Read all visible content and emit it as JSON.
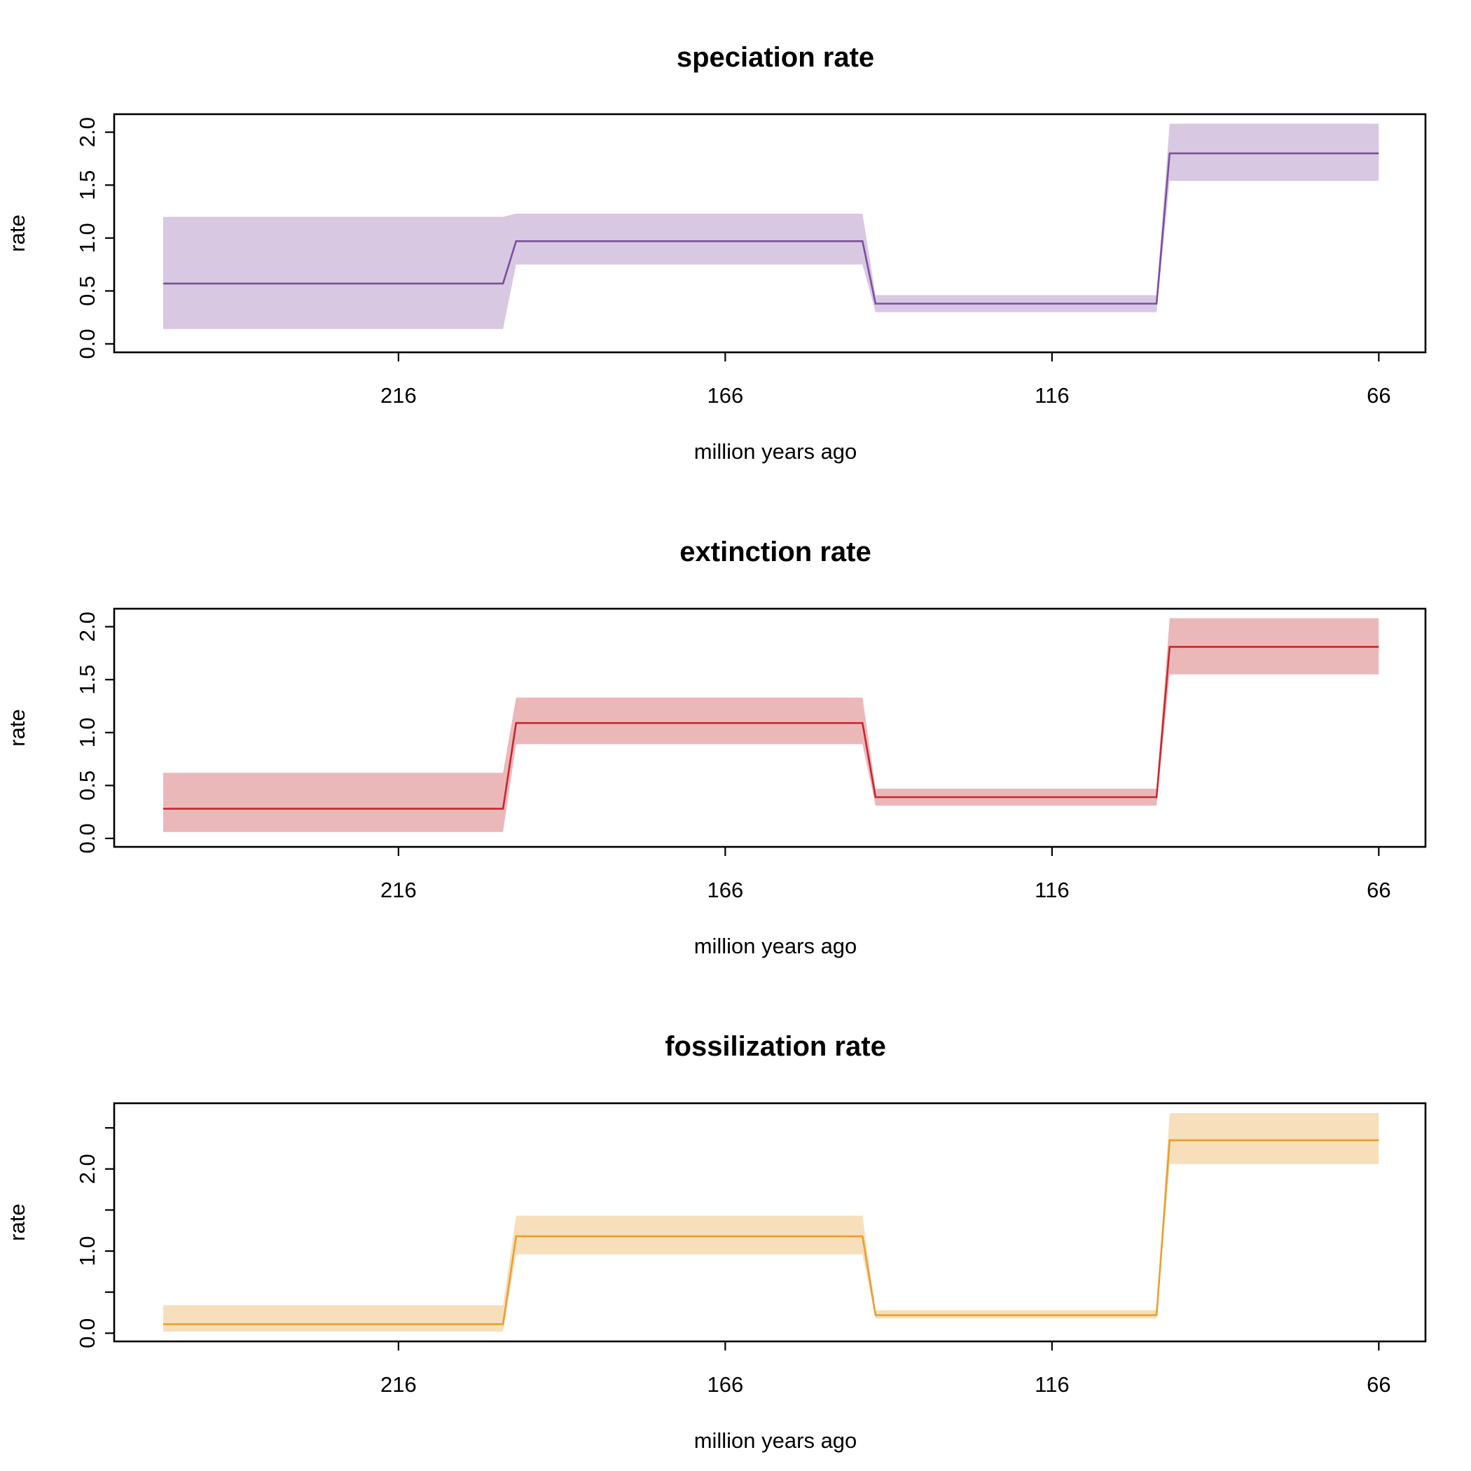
{
  "chart_data": [
    {
      "type": "line",
      "title": "speciation rate",
      "xlabel": "million years ago",
      "ylabel": "rate",
      "xlim": [
        252,
        66
      ],
      "ylim": [
        -0.08,
        2.17
      ],
      "x_ticks": [
        216,
        166,
        116,
        66
      ],
      "x_tick_labels": [
        "216",
        "166",
        "116",
        "66"
      ],
      "y_ticks": [
        0.0,
        0.5,
        1.0,
        1.5,
        2.0
      ],
      "y_tick_labels": [
        "0.0",
        "0.5",
        "1.0",
        "1.5",
        "2.0"
      ],
      "color": "#7b4f9e",
      "fill_color": "#d8c8e2",
      "series": [
        {
          "x": [
            252,
            200,
            198,
            145,
            143,
            100,
            98,
            66
          ],
          "y": [
            0.57,
            0.57,
            0.97,
            0.97,
            0.38,
            0.38,
            1.8,
            1.8
          ],
          "lower": [
            0.14,
            0.14,
            0.75,
            0.75,
            0.3,
            0.3,
            1.54,
            1.54
          ],
          "upper": [
            1.2,
            1.2,
            1.23,
            1.23,
            0.46,
            0.46,
            2.08,
            2.08
          ]
        }
      ]
    },
    {
      "type": "line",
      "title": "extinction rate",
      "xlabel": "million years ago",
      "ylabel": "rate",
      "xlim": [
        252,
        66
      ],
      "ylim": [
        -0.08,
        2.17
      ],
      "x_ticks": [
        216,
        166,
        116,
        66
      ],
      "x_tick_labels": [
        "216",
        "166",
        "116",
        "66"
      ],
      "y_ticks": [
        0.0,
        0.5,
        1.0,
        1.5,
        2.0
      ],
      "y_tick_labels": [
        "0.0",
        "0.5",
        "1.0",
        "1.5",
        "2.0"
      ],
      "color": "#c8262d",
      "fill_color": "#ebb8ba",
      "series": [
        {
          "x": [
            252,
            200,
            198,
            145,
            143,
            100,
            98,
            66
          ],
          "y": [
            0.28,
            0.28,
            1.09,
            1.09,
            0.39,
            0.39,
            1.81,
            1.81
          ],
          "lower": [
            0.06,
            0.06,
            0.89,
            0.89,
            0.31,
            0.31,
            1.55,
            1.55
          ],
          "upper": [
            0.62,
            0.62,
            1.33,
            1.33,
            0.47,
            0.47,
            2.08,
            2.08
          ]
        }
      ]
    },
    {
      "type": "line",
      "title": "fossilization rate",
      "xlabel": "million years ago",
      "ylabel": "rate",
      "xlim": [
        252,
        66
      ],
      "ylim": [
        -0.1,
        2.8
      ],
      "x_ticks": [
        216,
        166,
        116,
        66
      ],
      "x_tick_labels": [
        "216",
        "166",
        "116",
        "66"
      ],
      "y_ticks": [
        0.0,
        0.5,
        1.0,
        1.5,
        2.0,
        2.5
      ],
      "y_tick_labels": [
        "0.0",
        "",
        "1.0",
        "",
        "2.0",
        ""
      ],
      "color": "#e8a030",
      "fill_color": "#f6dfba",
      "series": [
        {
          "x": [
            252,
            200,
            198,
            145,
            143,
            100,
            98,
            66
          ],
          "y": [
            0.11,
            0.11,
            1.18,
            1.18,
            0.22,
            0.22,
            2.35,
            2.35
          ],
          "lower": [
            0.02,
            0.02,
            0.96,
            0.96,
            0.18,
            0.18,
            2.06,
            2.06
          ],
          "upper": [
            0.34,
            0.34,
            1.43,
            1.43,
            0.28,
            0.28,
            2.68,
            2.68
          ]
        }
      ]
    }
  ]
}
